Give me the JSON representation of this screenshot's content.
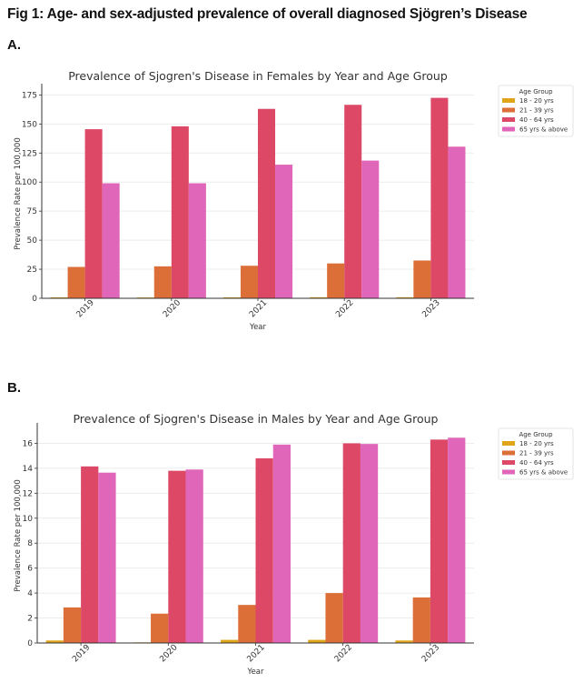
{
  "figure": {
    "title": "Fig 1: Age- and sex-adjusted prevalence of overall diagnosed Sjögren’s Disease",
    "panel_a_label": "A.",
    "panel_b_label": "B."
  },
  "colors": {
    "18 - 20 yrs": "#e0a419",
    "21 - 39 yrs": "#dc6e38",
    "40 - 64 yrs": "#dc4866",
    "65 yrs & above": "#e066b9"
  },
  "chart_data": [
    {
      "type": "bar",
      "title": "Prevalence of Sjogren's Disease in Females by Year and Age Group",
      "xlabel": "Year",
      "ylabel": "Prevalence Rate per 100,000",
      "categories": [
        "2019",
        "2020",
        "2021",
        "2022",
        "2023"
      ],
      "ylim": [
        0,
        180
      ],
      "yticks": [
        0,
        25,
        50,
        75,
        100,
        125,
        150,
        175
      ],
      "grid": true,
      "legend_title": "Age Group",
      "legend_position": "outside-top-right",
      "series": [
        {
          "name": "18 - 20 yrs",
          "values": [
            0.8,
            0.7,
            0.8,
            0.9,
            0.9
          ]
        },
        {
          "name": "21 - 39 yrs",
          "values": [
            27,
            27.5,
            28,
            30,
            32.5
          ]
        },
        {
          "name": "40 - 64 yrs",
          "values": [
            145.5,
            148,
            163,
            166.5,
            172.5
          ]
        },
        {
          "name": "65 yrs & above",
          "values": [
            99,
            99,
            115,
            118.5,
            130.5
          ]
        }
      ]
    },
    {
      "type": "bar",
      "title": "Prevalence of Sjogren's Disease in Males by Year and Age Group",
      "xlabel": "Year",
      "ylabel": "Prevalence Rate per 100,000",
      "categories": [
        "2019",
        "2020",
        "2021",
        "2022",
        "2023"
      ],
      "ylim": [
        0,
        17.2
      ],
      "yticks": [
        0,
        2,
        4,
        6,
        8,
        10,
        12,
        14,
        16
      ],
      "grid": true,
      "legend_title": "Age Group",
      "legend_position": "outside-top-right",
      "series": [
        {
          "name": "18 - 20 yrs",
          "values": [
            0.2,
            0.05,
            0.25,
            0.25,
            0.2
          ]
        },
        {
          "name": "21 - 39 yrs",
          "values": [
            2.85,
            2.35,
            3.05,
            4.0,
            3.65
          ]
        },
        {
          "name": "40 - 64 yrs",
          "values": [
            14.15,
            13.8,
            14.8,
            16.0,
            16.3
          ]
        },
        {
          "name": "65 yrs & above",
          "values": [
            13.65,
            13.9,
            15.9,
            15.95,
            16.45
          ]
        }
      ]
    }
  ]
}
